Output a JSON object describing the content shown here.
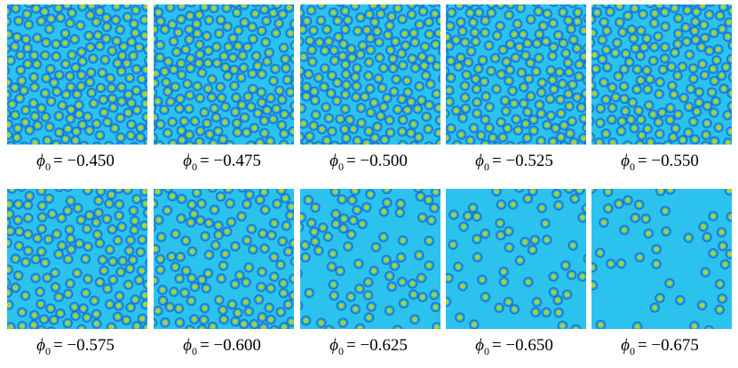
{
  "panels": [
    {
      "caption": {
        "symbol": "ϕ",
        "subscript": "0",
        "text": "= −0.450"
      }
    },
    {
      "caption": {
        "symbol": "ϕ",
        "subscript": "0",
        "text": "= −0.475"
      }
    },
    {
      "caption": {
        "symbol": "ϕ",
        "subscript": "0",
        "text": "= −0.500"
      }
    },
    {
      "caption": {
        "symbol": "ϕ",
        "subscript": "0",
        "text": "= −0.525"
      }
    },
    {
      "caption": {
        "symbol": "ϕ",
        "subscript": "0",
        "text": "= −0.550"
      }
    },
    {
      "caption": {
        "symbol": "ϕ",
        "subscript": "0",
        "text": "= −0.575"
      }
    },
    {
      "caption": {
        "symbol": "ϕ",
        "subscript": "0",
        "text": "= −0.600"
      }
    },
    {
      "caption": {
        "symbol": "ϕ",
        "subscript": "0",
        "text": "= −0.625"
      }
    },
    {
      "caption": {
        "symbol": "ϕ",
        "subscript": "0",
        "text": "= −0.650"
      }
    },
    {
      "caption": {
        "symbol": "ϕ",
        "subscript": "0",
        "text": "= −0.675"
      }
    }
  ]
}
